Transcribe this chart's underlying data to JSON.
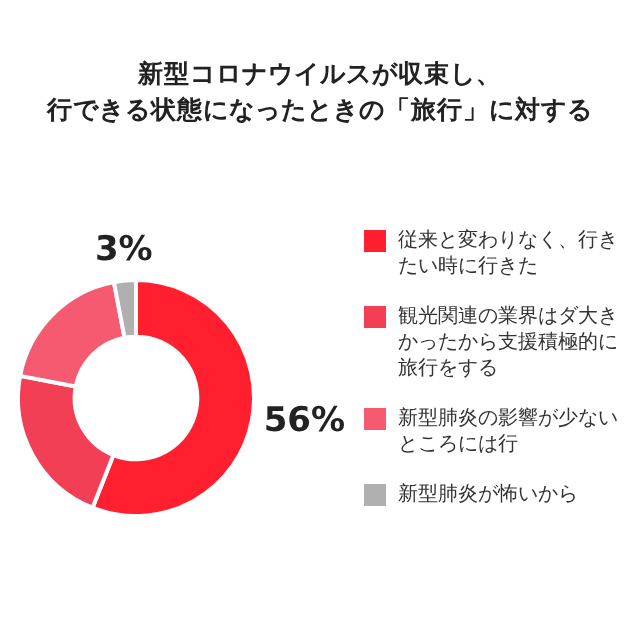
{
  "chart_data": {
    "type": "donut",
    "title": "新型コロナウイルスが収束し、",
    "subtitle": "行できる状態になったときの「旅行」に対する",
    "categories": [
      "従来と変わりなく、行きたい時に行きた",
      "観光関連の業界はダ大きかったから支援積極的に旅行をする",
      "新型肺炎の影響が少ないところには行",
      "新型肺炎が怖いから"
    ],
    "values": [
      56,
      22,
      19,
      3
    ],
    "colors": [
      "#ff1f2f",
      "#f23f55",
      "#f55a70",
      "#b0b0b0"
    ],
    "value_labels": [
      "56%",
      null,
      null,
      "3%"
    ],
    "legend": "right"
  }
}
